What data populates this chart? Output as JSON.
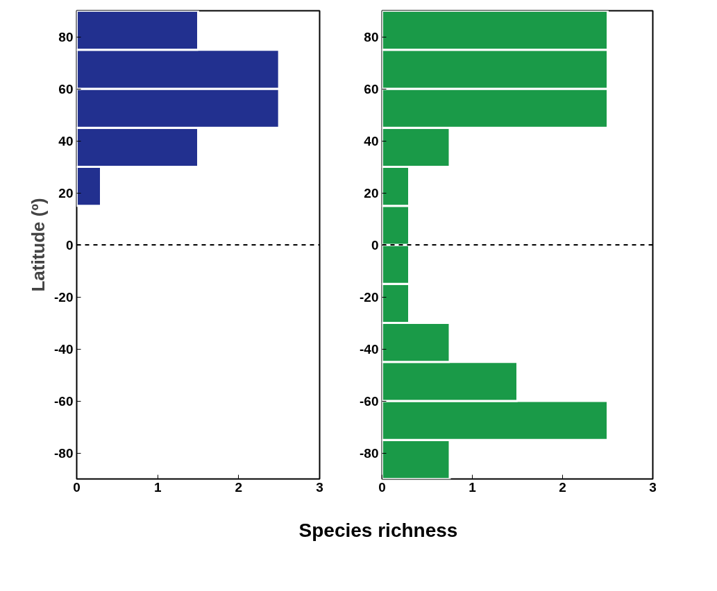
{
  "chart_data": [
    {
      "type": "histogram",
      "orientation": "horizontal",
      "ylabel": "Latitude (º)",
      "xlabel": "Species richness",
      "bins": [
        15,
        30,
        45,
        60,
        75,
        90
      ],
      "values": [
        0.3,
        1.5,
        2.5,
        2.5,
        1.5
      ],
      "color": "#22308f",
      "xlim": [
        0,
        3
      ],
      "xticks": [
        0,
        1,
        2,
        3
      ],
      "ylim": [
        -90,
        90
      ],
      "yticks": [
        -80,
        -60,
        -40,
        -20,
        0,
        20,
        40,
        60,
        80
      ],
      "ref_lines": [
        {
          "axis": "y",
          "value": 0,
          "line_style": "dashed",
          "color": "#000000"
        }
      ],
      "grid": false
    },
    {
      "type": "histogram",
      "orientation": "horizontal",
      "bins": [
        -90,
        -75,
        -60,
        -45,
        -30,
        -15,
        0,
        15,
        30,
        45,
        60,
        75,
        90
      ],
      "values": [
        0.75,
        2.5,
        1.5,
        0.75,
        0.3,
        0.3,
        0.3,
        0.3,
        0.75,
        2.5,
        2.5,
        2.5
      ],
      "color": "#1a9a48",
      "xlim": [
        0,
        3
      ],
      "xticks": [
        0,
        1,
        2,
        3
      ],
      "ylim": [
        -90,
        90
      ],
      "yticks": [
        -80,
        -60,
        -40,
        -20,
        0,
        20,
        40,
        60,
        80
      ],
      "ref_lines": [
        {
          "axis": "y",
          "value": 0,
          "line_style": "dashed",
          "color": "#000000"
        }
      ],
      "grid": false
    }
  ]
}
